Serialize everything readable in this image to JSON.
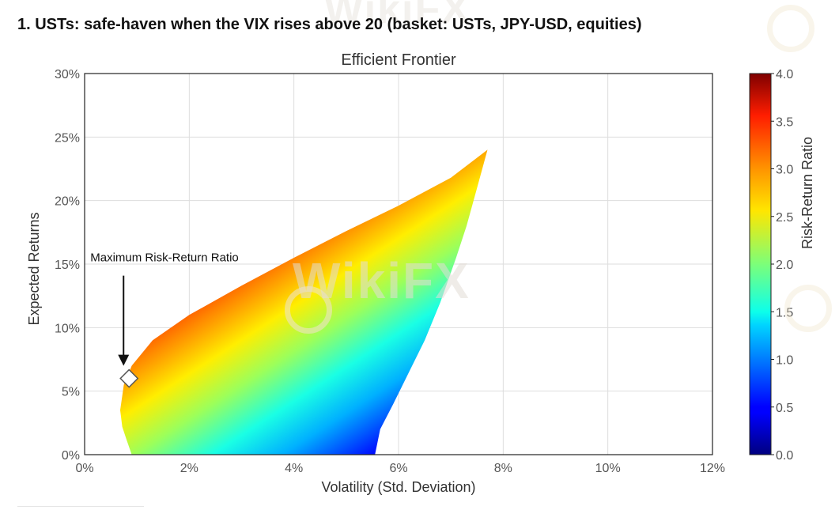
{
  "page": {
    "heading": "1. USTs: safe-haven when the VIX rises above 20 (basket: USTs, JPY-USD, equities)",
    "watermark": "WikiFX"
  },
  "chart_data": {
    "type": "scatter",
    "title": "Efficient Frontier",
    "xlabel": "Volatility (Std. Deviation)",
    "ylabel": "Expected Returns",
    "xlim": [
      0,
      12
    ],
    "ylim": [
      0,
      30
    ],
    "x_unit": "%",
    "y_unit": "%",
    "x_ticks": [
      0,
      2,
      4,
      6,
      8,
      10,
      12
    ],
    "y_ticks": [
      0,
      5,
      10,
      15,
      20,
      25,
      30
    ],
    "x_tick_labels": [
      "0%",
      "2%",
      "4%",
      "6%",
      "8%",
      "10%",
      "12%"
    ],
    "y_tick_labels": [
      "0%",
      "5%",
      "10%",
      "15%",
      "20%",
      "25%",
      "30%"
    ],
    "grid": true,
    "colorbar": {
      "label": "Risk-Return Ratio",
      "range": [
        0,
        4
      ],
      "ticks": [
        0,
        0.5,
        1,
        1.5,
        2,
        2.5,
        3,
        3.5,
        4
      ],
      "tick_labels": [
        "0.0",
        "0.5",
        "1.0",
        "1.5",
        "2.0",
        "2.5",
        "3.0",
        "3.5",
        "4.0"
      ],
      "colormap": "jet",
      "placement": "right"
    },
    "cloud": {
      "upper_edge": [
        [
          0.68,
          3.5
        ],
        [
          0.75,
          5.5
        ],
        [
          0.9,
          7.0
        ],
        [
          1.3,
          9.0
        ],
        [
          2.0,
          11.0
        ],
        [
          3.0,
          13.3
        ],
        [
          4.0,
          15.5
        ],
        [
          5.0,
          17.6
        ],
        [
          6.0,
          19.6
        ],
        [
          7.0,
          21.8
        ],
        [
          7.7,
          24.0
        ]
      ],
      "lower_edge": [
        [
          0.9,
          0
        ],
        [
          0.8,
          1.2
        ],
        [
          0.72,
          2.2
        ],
        [
          0.68,
          3.5
        ]
      ],
      "right_edge": [
        [
          5.55,
          0
        ],
        [
          5.65,
          2.0
        ],
        [
          5.9,
          4.0
        ],
        [
          6.2,
          6.5
        ],
        [
          6.5,
          9.0
        ],
        [
          6.8,
          12.0
        ],
        [
          7.1,
          15.5
        ],
        [
          7.3,
          18.0
        ],
        [
          7.5,
          21.0
        ],
        [
          7.7,
          24.0
        ]
      ]
    },
    "marker": {
      "x": 0.85,
      "y": 6.0,
      "shape": "diamond",
      "annotation": "Maximum Risk-Return Ratio"
    }
  }
}
